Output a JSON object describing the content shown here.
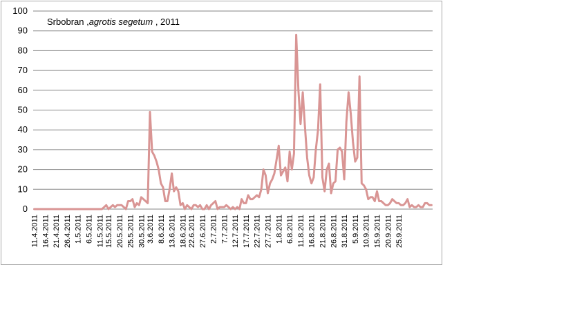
{
  "chart_data": {
    "type": "line",
    "title_parts": [
      "Srbobran ,",
      "agrotis segetum",
      " , 2011"
    ],
    "ylim": [
      0,
      100
    ],
    "yticks": [
      0,
      10,
      20,
      30,
      40,
      50,
      60,
      70,
      80,
      90,
      100
    ],
    "grid": true,
    "legend": "none",
    "line_color": "#d99594",
    "start_date": "11.4.2011",
    "x_labels": [
      "11.4.2011",
      "16.4.2011",
      "21.4.2011",
      "26.4.2011",
      "1.5.2011",
      "6.5.2011",
      "11.5.2011",
      "15.5.2011",
      "20.5.2011",
      "25.5.2011",
      "30.5.2011",
      "3.6.2011",
      "8.6.2011",
      "13.6.2011",
      "18.6.2011",
      "22.6.2011",
      "27.6.2011",
      "2.7.2011",
      "7.7.2011",
      "12.7.2011",
      "17.7.2011",
      "22.7.2011",
      "27.7.2011",
      "1.8.2011",
      "6.8.2011",
      "11.8.2011",
      "16.8.2011",
      "21.8.2011",
      "26.8.2011",
      "31.8.2011",
      "5.9.2011",
      "10.9.2011",
      "15.9.2011",
      "20.9.2011",
      "25.9.2011"
    ],
    "series": [
      {
        "values": [
          0,
          0,
          0,
          0,
          0,
          0,
          0,
          0,
          0,
          0,
          0,
          0,
          0,
          0,
          0,
          0,
          0,
          0,
          0,
          0,
          0,
          0,
          0,
          0,
          0,
          0,
          0,
          0,
          0,
          0,
          0,
          0,
          1,
          2,
          0,
          1,
          2,
          1,
          2,
          2,
          2,
          1,
          0,
          4,
          4,
          5,
          1,
          3,
          2,
          6,
          5,
          4,
          3,
          49,
          29,
          27,
          24,
          20,
          13,
          11,
          4,
          4,
          10,
          18,
          9,
          11,
          9,
          2,
          3,
          0,
          2,
          1,
          0,
          2,
          2,
          1,
          2,
          0,
          0,
          2,
          0,
          2,
          3,
          4,
          0,
          1,
          1,
          1,
          2,
          1,
          0,
          1,
          0,
          1,
          0,
          5,
          3,
          3,
          7,
          5,
          5,
          6,
          7,
          6,
          10,
          20,
          17,
          8,
          13,
          15,
          18,
          25,
          32,
          17,
          19,
          21,
          14,
          29,
          20,
          28,
          88,
          60,
          43,
          59,
          42,
          26,
          17,
          13,
          16,
          30,
          40,
          63,
          16,
          9,
          20,
          23,
          8,
          13,
          14,
          30,
          31,
          29,
          15,
          44,
          59,
          48,
          34,
          24,
          26,
          67,
          13,
          12,
          10,
          5,
          6,
          6,
          4,
          9,
          4,
          4,
          3,
          2,
          2,
          3,
          5,
          4,
          3,
          3,
          2,
          2,
          3,
          5,
          1,
          2,
          1,
          1,
          2,
          1,
          1,
          3,
          3,
          2,
          2
        ]
      }
    ]
  }
}
